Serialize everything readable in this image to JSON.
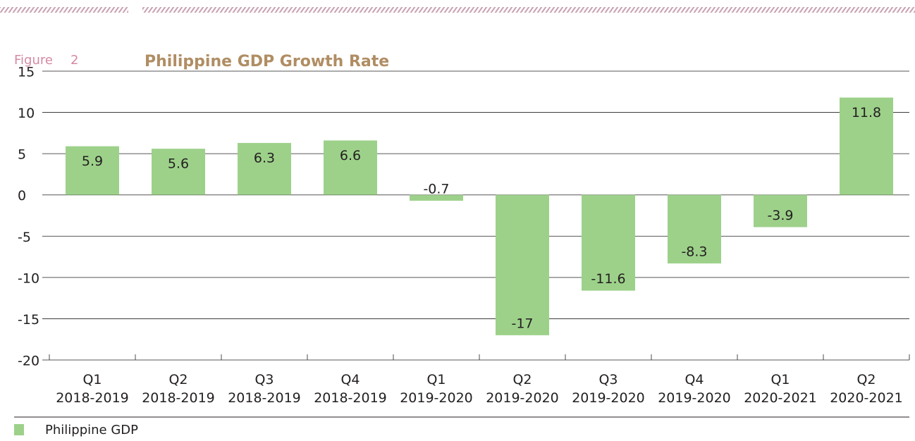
{
  "figure_label": "Figure",
  "figure_number": "2",
  "chart_data": {
    "type": "bar",
    "title": "Philippine GDP Growth Rate",
    "categories": [
      "Q1\n2018-2019",
      "Q2\n2018-2019",
      "Q3\n2018-2019",
      "Q4\n2018-2019",
      "Q1\n2019-2020",
      "Q2\n2019-2020",
      "Q3\n2019-2020",
      "Q4\n2019-2020",
      "Q1\n2020-2021",
      "Q2\n2020-2021"
    ],
    "series": [
      {
        "name": "Philippine GDP",
        "color": "#9dd18a",
        "values": [
          5.9,
          5.6,
          6.3,
          6.6,
          -0.7,
          -17,
          -11.6,
          -8.3,
          -3.9,
          11.8
        ]
      }
    ],
    "ylim": [
      -20,
      15
    ],
    "yticks": [
      15,
      10,
      5,
      0,
      -5,
      -10,
      -15,
      -20
    ],
    "grid": true,
    "legend": "bottom-left"
  }
}
